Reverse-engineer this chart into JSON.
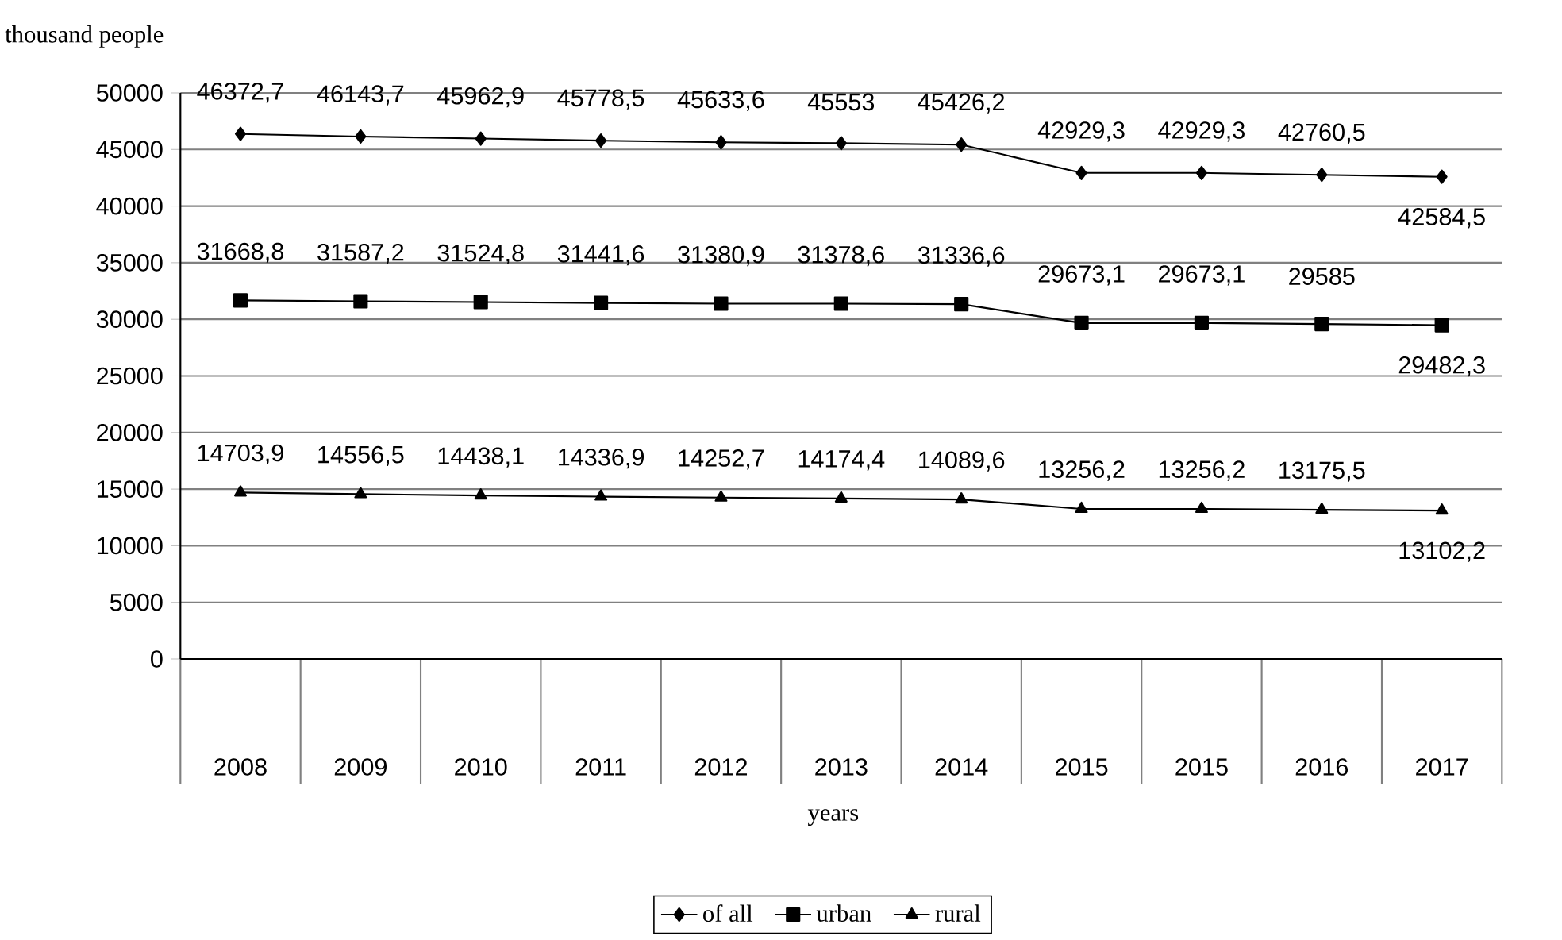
{
  "chart_data": {
    "type": "line",
    "ylabel": "thousand people",
    "xlabel": "years",
    "categories": [
      "2008",
      "2009",
      "2010",
      "2011",
      "2012",
      "2013",
      "2014",
      "2015",
      "2015",
      "2016",
      "2017"
    ],
    "ylim": [
      0,
      50000
    ],
    "yticks": [
      0,
      5000,
      10000,
      15000,
      20000,
      25000,
      30000,
      35000,
      40000,
      45000,
      50000
    ],
    "grid": "y",
    "legend": "bottom",
    "line_style": "solid",
    "series": [
      {
        "name": "of all",
        "color": "#000000",
        "marker": "diamond",
        "values": [
          46372.7,
          46143.7,
          45962.9,
          45778.5,
          45633.6,
          45553,
          45426.2,
          42929.3,
          42929.3,
          42760.5,
          42584.5
        ],
        "value_labels": [
          "46372,7",
          "46143,7",
          "45962,9",
          "45778,5",
          "45633,6",
          "45553",
          "45426,2",
          "42929,3",
          "42929,3",
          "42760,5",
          "42584,5"
        ]
      },
      {
        "name": "urban",
        "color": "#000000",
        "marker": "square",
        "values": [
          31668.8,
          31587.2,
          31524.8,
          31441.6,
          31380.9,
          31378.6,
          31336.6,
          29673.1,
          29673.1,
          29585,
          29482.3
        ],
        "value_labels": [
          "31668,8",
          "31587,2",
          "31524,8",
          "31441,6",
          "31380,9",
          "31378,6",
          "31336,6",
          "29673,1",
          "29673,1",
          "29585",
          "29482,3"
        ]
      },
      {
        "name": "rural",
        "color": "#000000",
        "marker": "triangle",
        "values": [
          14703.9,
          14556.5,
          14438.1,
          14336.9,
          14252.7,
          14174.4,
          14089.6,
          13256.2,
          13256.2,
          13175.5,
          13102.2
        ],
        "value_labels": [
          "14703,9",
          "14556,5",
          "14438,1",
          "14336,9",
          "14252,7",
          "14174,4",
          "14089,6",
          "13256,2",
          "13256,2",
          "13175,5",
          "13102,2"
        ]
      }
    ]
  }
}
